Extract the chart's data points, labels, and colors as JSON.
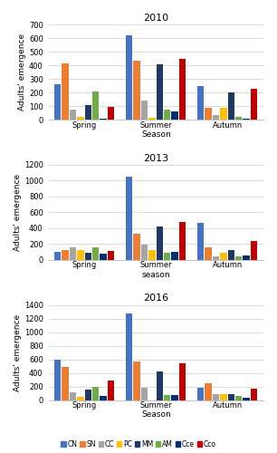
{
  "years": [
    "2010",
    "2013",
    "2016"
  ],
  "seasons": [
    "Spring",
    "Summer",
    "Autumn"
  ],
  "xlabel_map": {
    "2010": "Season",
    "2013": "season",
    "2016": "Season"
  },
  "ylabel": "Adults' emergence",
  "species": [
    "CN",
    "SN",
    "CC",
    "PC",
    "MM",
    "AM",
    "Cce",
    "Cco"
  ],
  "bar_colors": [
    "#4472C4",
    "#ED7D31",
    "#A5A5A5",
    "#FFC000",
    "#203864",
    "#70AD47",
    "#003070",
    "#C00000"
  ],
  "data": {
    "2010": {
      "Spring": [
        260,
        415,
        75,
        20,
        110,
        210,
        10,
        95
      ],
      "Summer": [
        620,
        435,
        145,
        15,
        410,
        75,
        60,
        450
      ],
      "Autumn": [
        245,
        90,
        35,
        90,
        200,
        20,
        10,
        230
      ]
    },
    "2013": {
      "Spring": [
        100,
        130,
        155,
        130,
        90,
        155,
        80,
        115
      ],
      "Summer": [
        1050,
        330,
        190,
        130,
        420,
        90,
        100,
        480
      ],
      "Autumn": [
        470,
        155,
        45,
        90,
        130,
        40,
        60,
        235
      ]
    },
    "2016": {
      "Spring": [
        590,
        490,
        110,
        45,
        155,
        195,
        65,
        285
      ],
      "Summer": [
        1270,
        575,
        185,
        0,
        420,
        75,
        80,
        545
      ],
      "Autumn": [
        185,
        245,
        95,
        95,
        90,
        60,
        35,
        165
      ]
    }
  },
  "ylims": {
    "2010": [
      0,
      700
    ],
    "2013": [
      0,
      1200
    ],
    "2016": [
      0,
      1400
    ]
  },
  "yticks": {
    "2010": [
      0,
      100,
      200,
      300,
      400,
      500,
      600,
      700
    ],
    "2013": [
      0,
      200,
      400,
      600,
      800,
      1000,
      1200
    ],
    "2016": [
      0,
      200,
      400,
      600,
      800,
      1000,
      1200,
      1400
    ]
  },
  "legend_labels": [
    "CN",
    "SN",
    "CC",
    "PC",
    "MM",
    "AM",
    "Cce",
    "Cco"
  ],
  "title_fontsize": 8,
  "axis_fontsize": 6.5,
  "tick_fontsize": 6,
  "legend_fontsize": 5.5
}
